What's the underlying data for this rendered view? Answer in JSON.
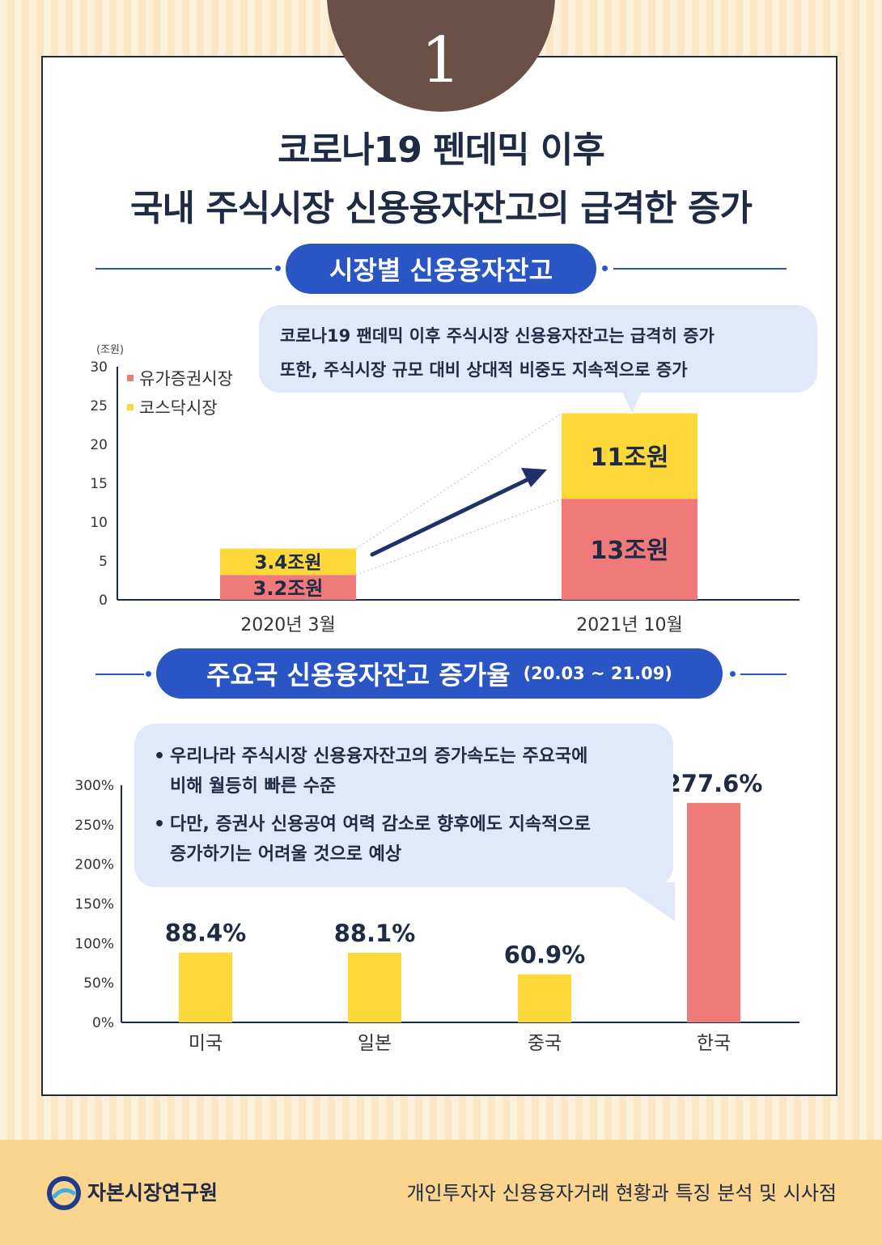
{
  "badge_number": "1",
  "title_line1": "코로나19 펜데믹 이후",
  "title_line2": "국내 주식시장 신용융자잔고의 급격한 증가",
  "section1": {
    "heading": "시장별 신용융자잔고",
    "bubble_line1": "코로나19 팬데믹 이후 주식시장 신용융자잔고는 급격히 증가",
    "bubble_line2": "또한, 주식시장 규모 대비 상대적 비중도 지속적으로 증가"
  },
  "section2": {
    "heading": "주요국 신용융자잔고 증가율",
    "period": "(20.03 ~ 21.09)",
    "bullet_mark": "•",
    "bullet1_line1": "우리나라 주식시장 신용융자잔고의 증가속도는 주요국에",
    "bullet1_line2": "비해 월등히 빠른 수준",
    "bullet2_line1": "다만, 증권사 신용공여 여력 감소로 향후에도 지속적으로",
    "bullet2_line2": "증가하기는 어려울 것으로 예상"
  },
  "colors": {
    "kospi": "#f07a7a",
    "kosdaq": "#fcd838",
    "navy": "#1f2a44",
    "accent_blue": "#2a55c4",
    "bubble_bg": "#e0e8fa",
    "badge": "#6b5047"
  },
  "chart_data": [
    {
      "type": "bar",
      "stacked": true,
      "unit_label": "(조원)",
      "categories": [
        "2020년 3월",
        "2021년 10월"
      ],
      "series": [
        {
          "name": "유가증권시장",
          "values": [
            3.2,
            13
          ],
          "labels": [
            "3.2조원",
            "13조원"
          ],
          "color": "#f07a7a"
        },
        {
          "name": "코스닥시장",
          "values": [
            3.4,
            11
          ],
          "labels": [
            "3.4조원",
            "11조원"
          ],
          "color": "#fcd838"
        }
      ],
      "yticks": [
        "0",
        "5",
        "10",
        "15",
        "20",
        "25",
        "30"
      ],
      "ylim": [
        0,
        30
      ],
      "legend_position": "top-left",
      "grid": false
    },
    {
      "type": "bar",
      "categories": [
        "미국",
        "일본",
        "중국",
        "한국"
      ],
      "values": [
        88.4,
        88.1,
        60.9,
        277.6
      ],
      "labels": [
        "88.4%",
        "88.1%",
        "60.9%",
        "277.6%"
      ],
      "colors": [
        "#fcd838",
        "#fcd838",
        "#fcd838",
        "#f07a7a"
      ],
      "yticks": [
        "0%",
        "50%",
        "100%",
        "150%",
        "200%",
        "250%",
        "300%"
      ],
      "ylim": [
        0,
        300
      ],
      "grid": false
    }
  ],
  "footer": {
    "org": "자본시장연구원",
    "report_title": "개인투자자 신용융자거래 현황과 특징 분석 및 시사점"
  }
}
